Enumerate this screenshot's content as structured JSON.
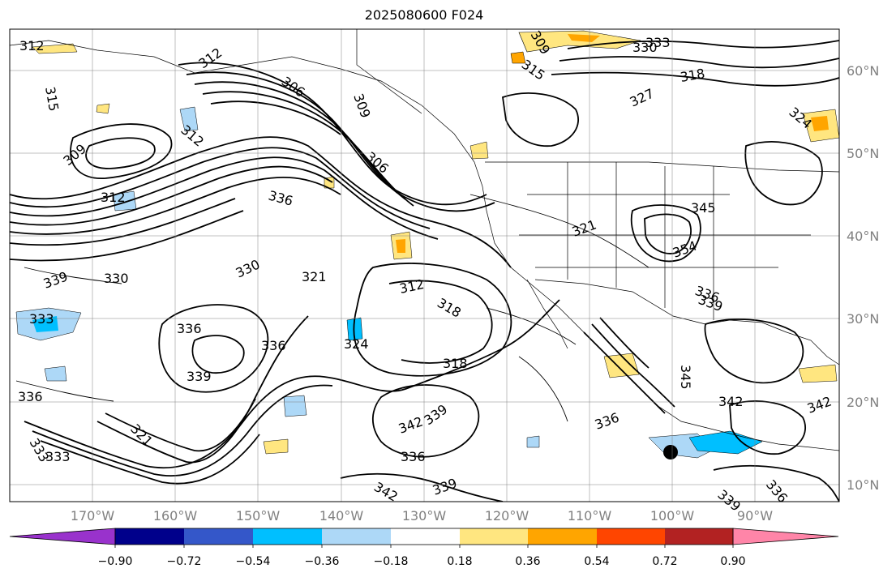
{
  "title": "2025080600 F024",
  "latitude_labels": [
    "60°N",
    "50°N",
    "40°N",
    "30°N",
    "20°N",
    "10°N"
  ],
  "longitude_labels": [
    "170°W",
    "160°W",
    "150°W",
    "140°W",
    "130°W",
    "120°W",
    "110°W",
    "100°W",
    "90°W"
  ],
  "contour_labels": [
    "312",
    "315",
    "309",
    "312",
    "312",
    "306",
    "309",
    "309",
    "306",
    "312",
    "336",
    "333",
    "339",
    "330",
    "333",
    "336",
    "330",
    "321",
    "312",
    "318",
    "324",
    "336",
    "339",
    "336",
    "321",
    "333",
    "318",
    "342",
    "339",
    "336",
    "342",
    "339",
    "336",
    "333",
    "330",
    "315",
    "318",
    "327",
    "324",
    "321",
    "345",
    "354",
    "336",
    "339",
    "342",
    "345",
    "342",
    "339",
    "336"
  ],
  "colorbar": {
    "tick_labels": [
      "−0.90",
      "−0.72",
      "−0.54",
      "−0.36",
      "−0.18",
      "0.18",
      "0.36",
      "0.54",
      "0.72",
      "0.90"
    ],
    "colors": [
      "#9932cc",
      "#00008b",
      "#3457c9",
      "#00bfff",
      "#add8f7",
      "#ffffff",
      "#ffe680",
      "#ffa500",
      "#ff4500",
      "#b22222",
      "#ff85a8"
    ]
  },
  "colors": {
    "contour": "#000000",
    "grid": "#808080",
    "axis_label": "#808080",
    "marker": "#000000"
  }
}
